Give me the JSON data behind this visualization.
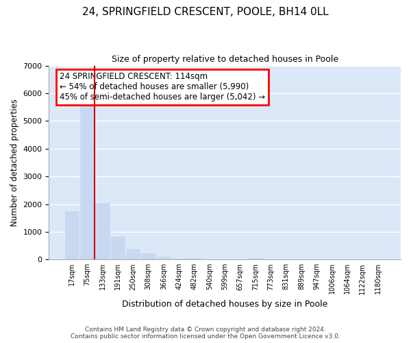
{
  "title_line1": "24, SPRINGFIELD CRESCENT, POOLE, BH14 0LL",
  "title_line2": "Size of property relative to detached houses in Poole",
  "xlabel": "Distribution of detached houses by size in Poole",
  "ylabel": "Number of detached properties",
  "footnote": "Contains HM Land Registry data © Crown copyright and database right 2024.\nContains public sector information licensed under the Open Government Licence v3.0.",
  "categories": [
    "17sqm",
    "75sqm",
    "133sqm",
    "191sqm",
    "250sqm",
    "308sqm",
    "366sqm",
    "424sqm",
    "482sqm",
    "540sqm",
    "599sqm",
    "657sqm",
    "715sqm",
    "773sqm",
    "831sqm",
    "889sqm",
    "947sqm",
    "1006sqm",
    "1064sqm",
    "1122sqm",
    "1180sqm"
  ],
  "values": [
    1750,
    5750,
    2050,
    830,
    380,
    230,
    100,
    30,
    50,
    10,
    5,
    3,
    50,
    2,
    1,
    1,
    1,
    1,
    1,
    1,
    1
  ],
  "bar_color": "#c8d8f0",
  "bar_edge_color": "#c8d8f0",
  "vline_color": "#cc0000",
  "vline_x": 1.5,
  "annotation_text": "24 SPRINGFIELD CRESCENT: 114sqm\n← 54% of detached houses are smaller (5,990)\n45% of semi-detached houses are larger (5,042) →",
  "background_color": "#dce8f8",
  "plot_bg_color": "#ffffff",
  "grid_color": "#e8e8e8",
  "ylim": [
    0,
    7000
  ],
  "yticks": [
    0,
    1000,
    2000,
    3000,
    4000,
    5000,
    6000,
    7000
  ]
}
